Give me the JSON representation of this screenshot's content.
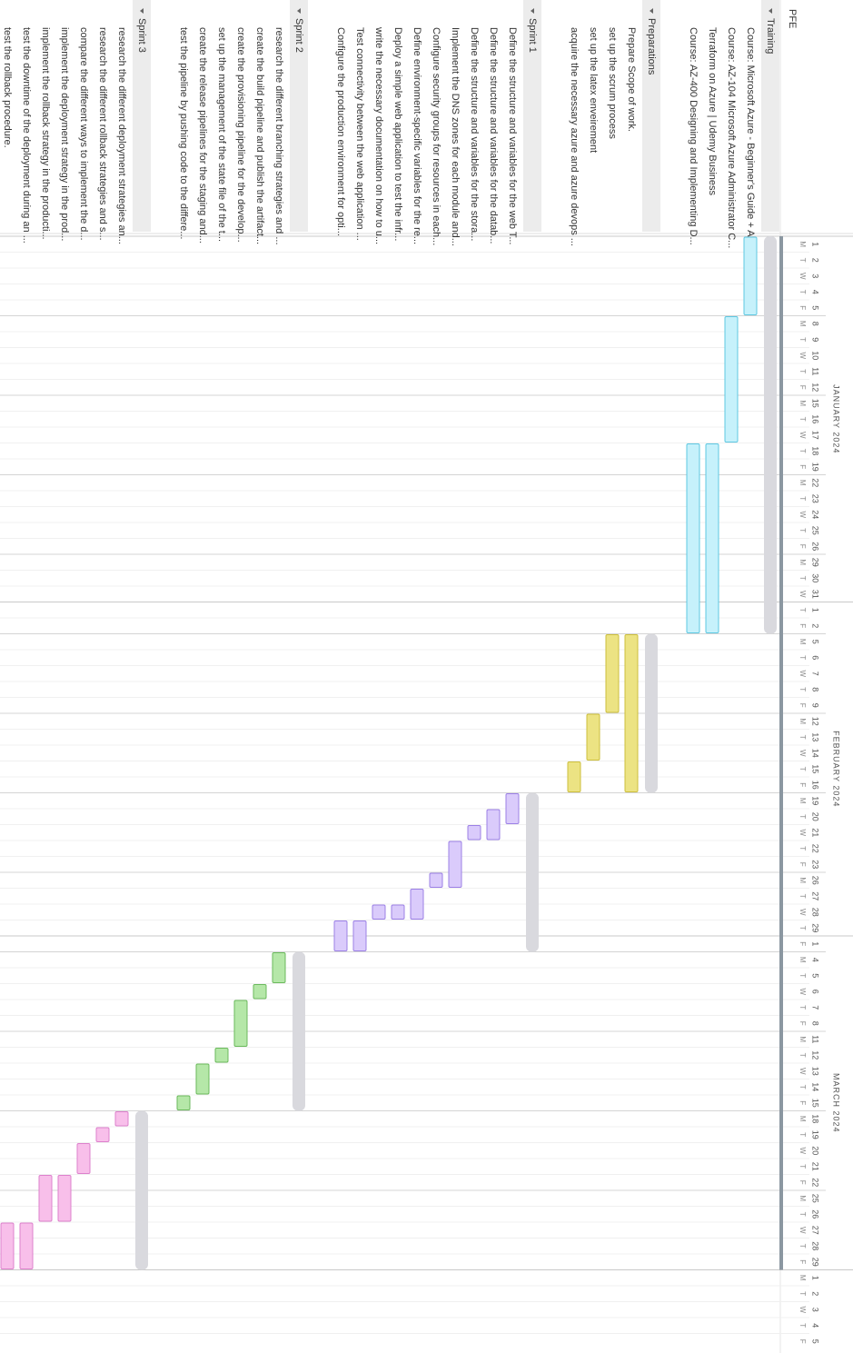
{
  "project": {
    "name": "PFE",
    "start": "2024-01-01",
    "end": "2024-03-29",
    "color": "#8b97a1"
  },
  "timeline": {
    "weekdays": [
      "M",
      "T",
      "W",
      "T",
      "F"
    ],
    "months": [
      {
        "label": "JANUARY 2024",
        "days": [
          1,
          2,
          3,
          4,
          5,
          8,
          9,
          10,
          11,
          12,
          15,
          16,
          17,
          18,
          19,
          22,
          23,
          24,
          25,
          26,
          29,
          30,
          31
        ]
      },
      {
        "label": "FEBRUARY 2024",
        "days": [
          1,
          2,
          5,
          6,
          7,
          8,
          9,
          12,
          13,
          14,
          15,
          16,
          19,
          20,
          21,
          22,
          23,
          26,
          27,
          28,
          29
        ]
      },
      {
        "label": "MARCH 2024",
        "days": [
          1,
          4,
          5,
          6,
          7,
          8,
          11,
          12,
          13,
          14,
          15,
          18,
          19,
          20,
          21,
          22,
          25,
          26,
          27,
          28,
          29
        ]
      },
      {
        "label": null,
        "days": [
          1,
          2,
          3,
          4,
          5
        ]
      }
    ]
  },
  "groups": [
    {
      "name": "Training",
      "start": "2024-01-01",
      "end": "2024-02-02",
      "color": "#c6f1fb",
      "border": "#5ec8e2",
      "tasks": [
        {
          "name": "Course: Microsoft Azure - Beginner's Guide + A...",
          "start": "2024-01-01",
          "end": "2024-01-05"
        },
        {
          "name": "Course: AZ-104 Microsoft Azure Administrator C...",
          "start": "2024-01-08",
          "end": "2024-01-17"
        },
        {
          "name": "Terraform on Azure | Udemy Business",
          "start": "2024-01-18",
          "end": "2024-02-02"
        },
        {
          "name": "Course: AZ-400 Designing and Implementing D...",
          "start": "2024-01-18",
          "end": "2024-02-02"
        }
      ]
    },
    {
      "name": "Preparations",
      "start": "2024-02-05",
      "end": "2024-02-16",
      "color": "#ece383",
      "border": "#cdbf3c",
      "tasks": [
        {
          "name": "Prepare Scope of work.",
          "start": "2024-02-05",
          "end": "2024-02-16"
        },
        {
          "name": "set up the scrum process",
          "start": "2024-02-05",
          "end": "2024-02-09"
        },
        {
          "name": "set up the latex enveirement",
          "start": "2024-02-12",
          "end": "2024-02-14"
        },
        {
          "name": "acquire the necessary azure and azure devops ...",
          "start": "2024-02-15",
          "end": "2024-02-16"
        }
      ]
    },
    {
      "name": "Sprint 1",
      "start": "2024-02-19",
      "end": "2024-03-01",
      "color": "#dacbfb",
      "border": "#9c80e6",
      "tasks": [
        {
          "name": "Define the structure and variables for the web T...",
          "start": "2024-02-19",
          "end": "2024-02-20"
        },
        {
          "name": "Define the structure and variables for the datab...",
          "start": "2024-02-20",
          "end": "2024-02-21"
        },
        {
          "name": "Define the structure and variables for the stora...",
          "start": "2024-02-21",
          "end": "2024-02-21"
        },
        {
          "name": "Implement the DNS zones for each module and...",
          "start": "2024-02-22",
          "end": "2024-02-26"
        },
        {
          "name": "Configure security groups for resources in each...",
          "start": "2024-02-26",
          "end": "2024-02-26"
        },
        {
          "name": "Define environment-specific variables for the re...",
          "start": "2024-02-27",
          "end": "2024-02-28"
        },
        {
          "name": "Deploy a simple web application to test the infr...",
          "start": "2024-02-28",
          "end": "2024-02-28"
        },
        {
          "name": "write the necessary documentation on how to u...",
          "start": "2024-02-28",
          "end": "2024-02-28"
        },
        {
          "name": "Test connectivity between the web application ...",
          "start": "2024-02-29",
          "end": "2024-03-01"
        },
        {
          "name": "Configure the production environment for opti...",
          "start": "2024-02-29",
          "end": "2024-03-01"
        }
      ]
    },
    {
      "name": "Sprint 2",
      "start": "2024-03-04",
      "end": "2024-03-15",
      "color": "#b5e7a8",
      "border": "#6bba5c",
      "tasks": [
        {
          "name": "research the different branching strategies and ...",
          "start": "2024-03-04",
          "end": "2024-03-05"
        },
        {
          "name": "create the build pipeline and publish the artifact...",
          "start": "2024-03-06",
          "end": "2024-03-06"
        },
        {
          "name": "create the provisioning pipeline for the develop...",
          "start": "2024-03-07",
          "end": "2024-03-11"
        },
        {
          "name": "set up the management of the state file of the t...",
          "start": "2024-03-12",
          "end": "2024-03-12"
        },
        {
          "name": "create the release pipelines for the staging and...",
          "start": "2024-03-13",
          "end": "2024-03-14"
        },
        {
          "name": "test the pipeline by pushing code to the differe...",
          "start": "2024-03-15",
          "end": "2024-03-15"
        }
      ]
    },
    {
      "name": "Sprint 3",
      "start": "2024-03-18",
      "end": "2024-03-29",
      "color": "#f8bfea",
      "border": "#dd80cc",
      "tasks": [
        {
          "name": "research the different deployment strategies an...",
          "start": "2024-03-18",
          "end": "2024-03-18"
        },
        {
          "name": "research the different rollback strategies and s...",
          "start": "2024-03-19",
          "end": "2024-03-19"
        },
        {
          "name": "compare the different ways to implement the d...",
          "start": "2024-03-20",
          "end": "2024-03-21"
        },
        {
          "name": "implement the deployment strategy in the prod...",
          "start": "2024-03-22",
          "end": "2024-03-26"
        },
        {
          "name": "implement the rollback strategy in the producti...",
          "start": "2024-03-22",
          "end": "2024-03-26"
        },
        {
          "name": "test the downtime of the deployment during an ...",
          "start": "2024-03-27",
          "end": "2024-03-29"
        },
        {
          "name": "test the rollback procedure.",
          "start": "2024-03-27",
          "end": "2024-03-29"
        }
      ]
    }
  ]
}
